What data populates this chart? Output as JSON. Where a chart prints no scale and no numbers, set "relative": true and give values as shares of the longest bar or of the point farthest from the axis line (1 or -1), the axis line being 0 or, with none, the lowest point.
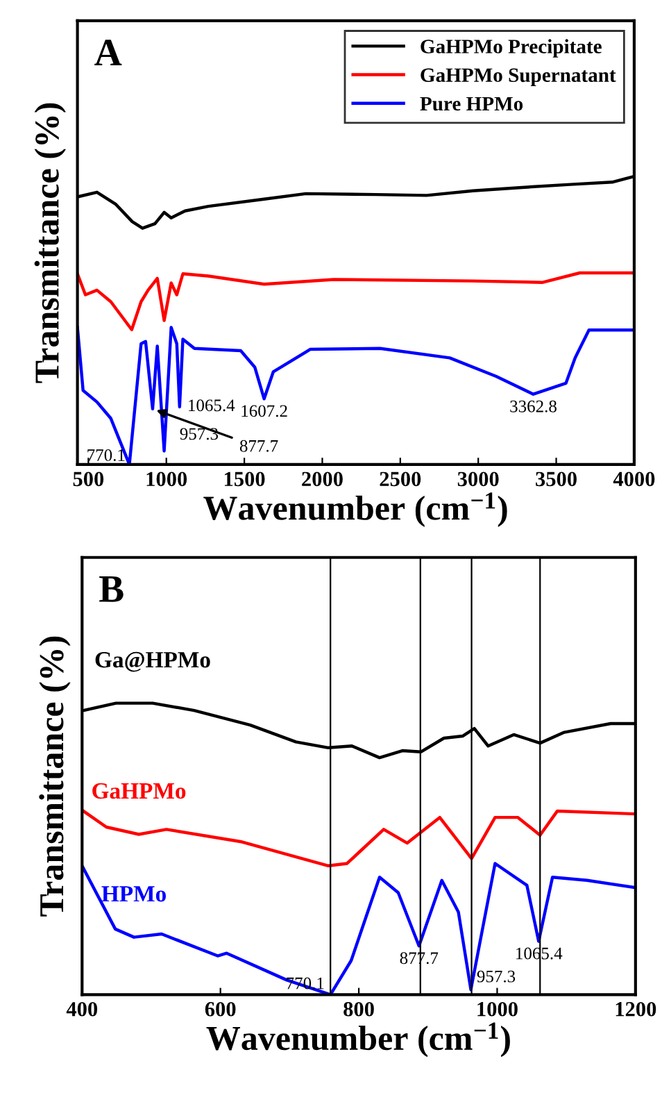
{
  "chart_data": [
    {
      "type": "line",
      "title": "A",
      "xlabel": "Wavenumber (cm$^{−1}$)",
      "ylabel": "Transmittance (%)",
      "relative": true,
      "xlim": [
        430,
        4000
      ],
      "xticks": [
        500,
        1000,
        1500,
        2000,
        2500,
        3000,
        3500,
        4000
      ],
      "grid": false,
      "legend": "top right",
      "marker": "none",
      "line_style": "solid",
      "series": [
        {
          "name": "GaHPMo Precipitate",
          "color": "#000000",
          "x": [
            430,
            555,
            674,
            781,
            847,
            927,
            986,
            1031,
            1120,
            1269,
            1627,
            1895,
            2341,
            2669,
            2966,
            3263,
            3591,
            3859,
            4000
          ],
          "values": [
            0.929,
            0.945,
            0.904,
            0.843,
            0.82,
            0.836,
            0.875,
            0.856,
            0.88,
            0.896,
            0.921,
            0.94,
            0.937,
            0.934,
            0.95,
            0.961,
            0.972,
            0.98,
            1.0
          ]
        },
        {
          "name": "GaHPMo Supernatant",
          "color": "#ff0000",
          "x": [
            430,
            481,
            555,
            644,
            778,
            838,
            883,
            942,
            986,
            1031,
            1067,
            1106,
            1269,
            1627,
            2073,
            2966,
            3413,
            3651,
            4000
          ],
          "values": [
            0.662,
            0.589,
            0.605,
            0.565,
            0.468,
            0.565,
            0.605,
            0.646,
            0.5,
            0.63,
            0.589,
            0.662,
            0.654,
            0.626,
            0.642,
            0.637,
            0.632,
            0.665,
            0.665
          ]
        },
        {
          "name": "Pure HPMo",
          "color": "#0000ff",
          "x": [
            430,
            466,
            555,
            644,
            763,
            838,
            867,
            912,
            942,
            986,
            1031,
            1067,
            1085,
            1106,
            1180,
            1477,
            1567,
            1627,
            1686,
            1924,
            2370,
            2817,
            3115,
            3353,
            3562,
            3621,
            3710,
            4000
          ],
          "values": [
            0.476,
            0.257,
            0.217,
            0.16,
            0,
            0.419,
            0.427,
            0.193,
            0.411,
            0.047,
            0.476,
            0.419,
            0.2,
            0.435,
            0.403,
            0.395,
            0.338,
            0.228,
            0.322,
            0.4,
            0.403,
            0.37,
            0.306,
            0.244,
            0.282,
            0.37,
            0.467,
            0.467
          ]
        }
      ],
      "annotations": [
        {
          "text": "770.1",
          "x": 763,
          "y": 0
        },
        {
          "text": "877.7",
          "x": 912,
          "y": 0.193
        },
        {
          "text": "957.3",
          "x": 986,
          "y": 0.047
        },
        {
          "text": "1065.4",
          "x": 1085,
          "y": 0.2
        },
        {
          "text": "1607.2",
          "x": 1627,
          "y": 0.228
        },
        {
          "text": "3362.8",
          "x": 3353,
          "y": 0.244
        }
      ]
    },
    {
      "type": "line",
      "title": "B",
      "xlabel": "Wavenumber (cm$^{−1}$)",
      "ylabel": "Transmittance (%)",
      "relative": true,
      "xlim": [
        400,
        1200
      ],
      "xticks": [
        400,
        600,
        800,
        1000,
        1200
      ],
      "grid": false,
      "legend": false,
      "marker": "none",
      "line_style": "solid",
      "series": [
        {
          "name": "Ga@HPMo",
          "color": "#000000",
          "x": [
            402,
            449,
            502,
            562,
            643,
            709,
            756,
            790,
            830,
            863,
            890,
            923,
            950,
            967,
            987,
            1024,
            1062,
            1097,
            1164,
            1200
          ],
          "values": [
            0.975,
            1.0,
            1.0,
            0.975,
            0.925,
            0.867,
            0.847,
            0.853,
            0.813,
            0.837,
            0.833,
            0.88,
            0.887,
            0.913,
            0.853,
            0.892,
            0.863,
            0.9,
            0.93,
            0.93
          ]
        },
        {
          "name": "GaHPMo",
          "color": "#ff0000",
          "x": [
            400,
            435,
            482,
            522,
            629,
            756,
            783,
            836,
            870,
            917,
            963,
            997,
            1030,
            1062,
            1087,
            1200
          ],
          "values": [
            0.633,
            0.575,
            0.55,
            0.567,
            0.525,
            0.442,
            0.45,
            0.567,
            0.52,
            0.608,
            0.467,
            0.608,
            0.608,
            0.547,
            0.63,
            0.62
          ]
        },
        {
          "name": "HPMo",
          "color": "#0000ff",
          "x": [
            400,
            448,
            475,
            515,
            596,
            609,
            696,
            759,
            789,
            830,
            857,
            887,
            920,
            944,
            962,
            997,
            1043,
            1060,
            1080,
            1130,
            1200
          ],
          "values": [
            0.442,
            0.225,
            0.197,
            0.208,
            0.133,
            0.142,
            0.05,
            0,
            0.117,
            0.403,
            0.35,
            0.167,
            0.392,
            0.283,
            0.017,
            0.45,
            0.375,
            0.183,
            0.403,
            0.392,
            0.367
          ]
        }
      ],
      "ref_lines": [
        {
          "axis": "x",
          "value": 759,
          "color": "#000000"
        },
        {
          "axis": "x",
          "value": 889,
          "color": "#000000"
        },
        {
          "axis": "x",
          "value": 963,
          "color": "#000000"
        },
        {
          "axis": "x",
          "value": 1062,
          "color": "#000000"
        }
      ],
      "annotations": [
        {
          "text": "770.1",
          "x": 759,
          "y": 0
        },
        {
          "text": "877.7",
          "x": 887,
          "y": 0.167
        },
        {
          "text": "957.3",
          "x": 962,
          "y": 0.017
        },
        {
          "text": "1065.4",
          "x": 1060,
          "y": 0.183
        }
      ]
    }
  ]
}
